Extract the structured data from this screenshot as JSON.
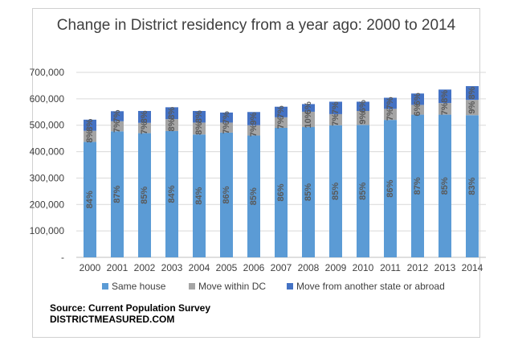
{
  "chart_data": {
    "type": "bar",
    "stacked": true,
    "title": "Change in District residency from a year ago: 2000 to 2014",
    "xlabel": "",
    "ylabel": "",
    "ylim": [
      0,
      700000
    ],
    "yticks": [
      0,
      100000,
      200000,
      300000,
      400000,
      500000,
      600000,
      700000
    ],
    "ytick_labels": [
      "-",
      "100,000",
      "200,000",
      "300,000",
      "400,000",
      "500,000",
      "600,000",
      "700,000"
    ],
    "grid": true,
    "legend_position": "bottom",
    "categories": [
      "2000",
      "2001",
      "2002",
      "2003",
      "2004",
      "2005",
      "2006",
      "2007",
      "2008",
      "2009",
      "2010",
      "2011",
      "2012",
      "2013",
      "2014"
    ],
    "series": [
      {
        "name": "Same house",
        "color": "#5b9bd5",
        "values": [
          437000,
          477000,
          470000,
          478000,
          465000,
          472000,
          461000,
          490000,
          493000,
          500000,
          501000,
          520000,
          540000,
          540000,
          538000
        ],
        "labels": [
          "84%",
          "87%",
          "85%",
          "84%",
          "84%",
          "86%",
          "85%",
          "86%",
          "85%",
          "85%",
          "85%",
          "86%",
          "87%",
          "85%",
          "83%"
        ]
      },
      {
        "name": "Move within DC",
        "color": "#a5a5a5",
        "values": [
          42000,
          38000,
          39000,
          45000,
          45000,
          38000,
          39000,
          40000,
          58000,
          42000,
          53000,
          42000,
          37000,
          44000,
          58000
        ],
        "labels": [
          "8%",
          "7%",
          "7%",
          "8%",
          "8%",
          "7%",
          "7%",
          "7%",
          "10%",
          "7%",
          "9%",
          "7%",
          "6%",
          "7%",
          "9%"
        ]
      },
      {
        "name": "Move from another state or abroad",
        "color": "#4472c4",
        "values": [
          42000,
          38000,
          45000,
          45000,
          44000,
          38000,
          50000,
          40000,
          29000,
          47000,
          35000,
          42000,
          43000,
          51000,
          52000
        ],
        "labels": [
          "8%",
          "7%",
          "8%",
          "8%",
          "8%",
          "7%",
          "9%",
          "7%",
          "6%",
          "7%",
          "6%",
          "7%",
          "6%",
          "8%",
          "8%"
        ]
      }
    ]
  },
  "source": {
    "line1": "Source: Current Population Survey",
    "line2": "DISTRICTMEASURED.COM"
  }
}
